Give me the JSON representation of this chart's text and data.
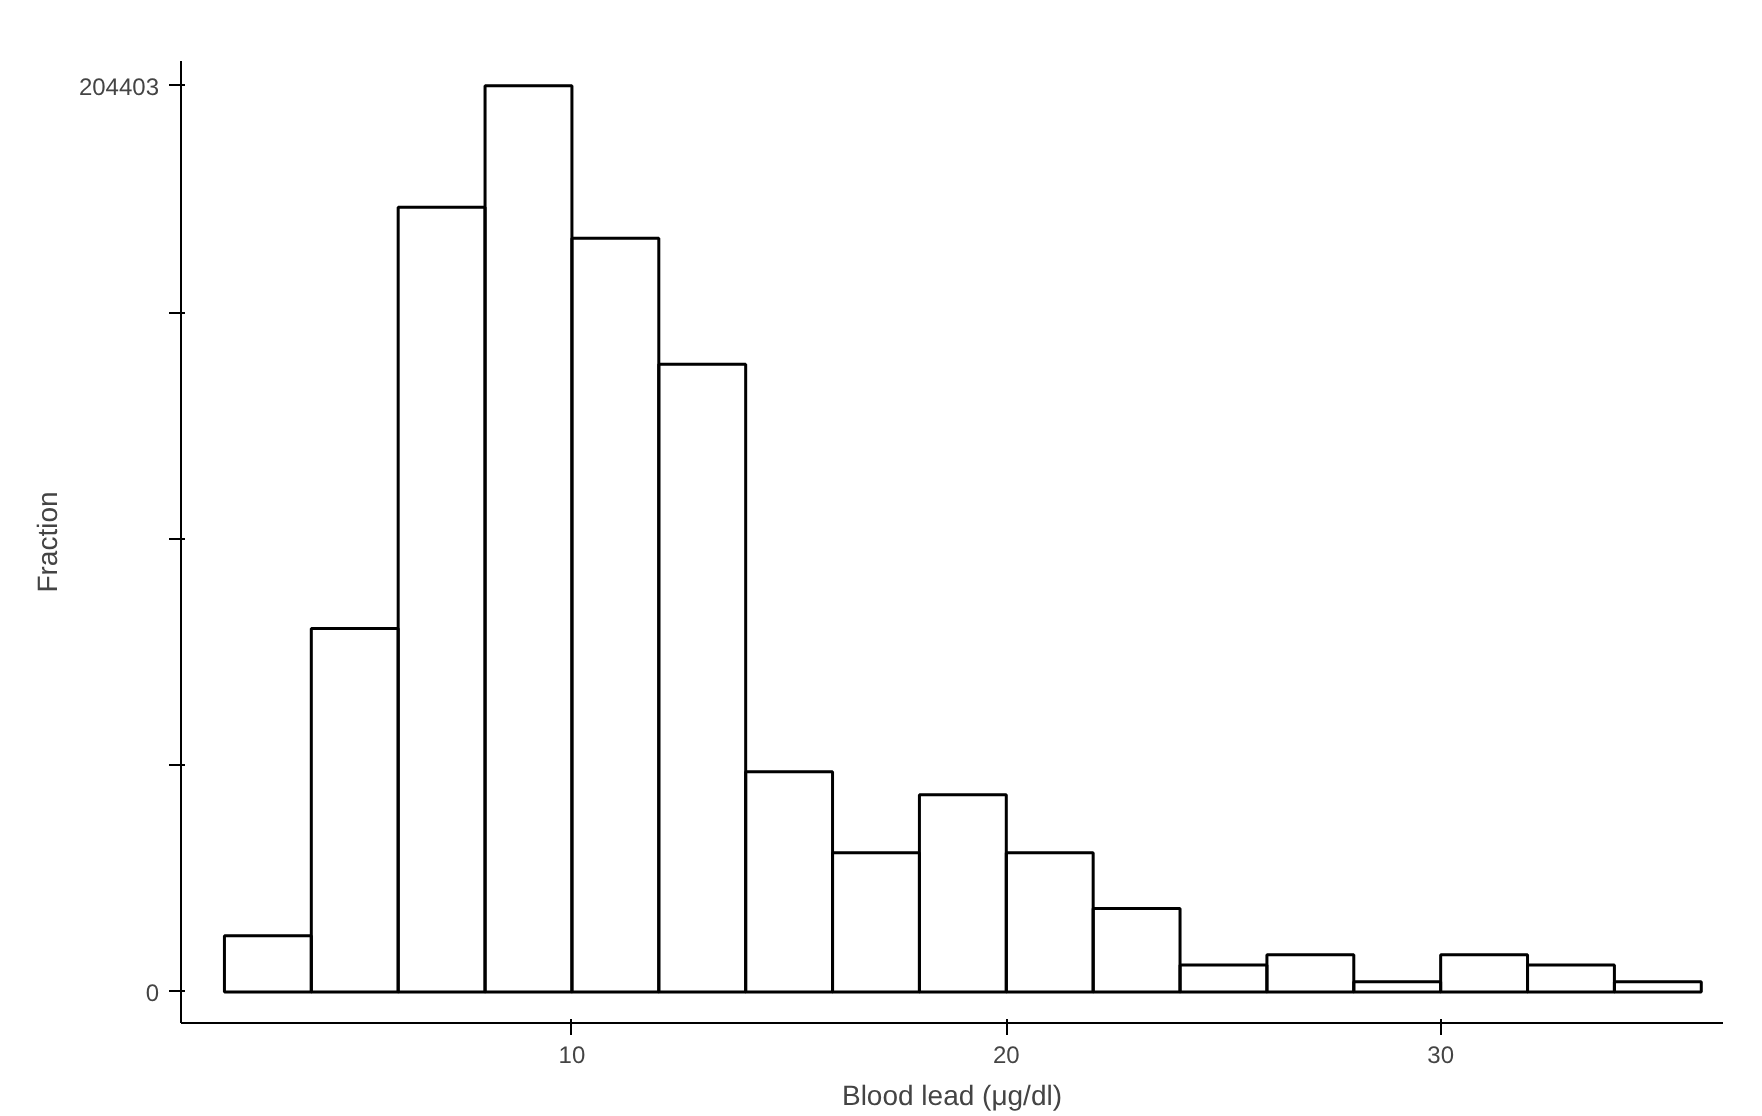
{
  "chart_data": {
    "type": "histogram",
    "xlabel": "Blood lead (μg/dl)",
    "ylabel": "Fraction",
    "bins": [
      2,
      4,
      6,
      8,
      10,
      12,
      14,
      16,
      18,
      20,
      22,
      24,
      26,
      28,
      30,
      32,
      34,
      36
    ],
    "values": [
      12700,
      82000,
      177000,
      204403,
      170000,
      141600,
      49700,
      31400,
      44500,
      31400,
      18800,
      6100,
      8400,
      2300,
      8400,
      6100,
      2300
    ],
    "color": "#000000",
    "xlim": [
      1,
      36.5
    ],
    "ylim": [
      -7000,
      210000
    ],
    "xticks": [
      10,
      20,
      30
    ],
    "yticks": [
      0,
      {
        "value": 51100,
        "label": null
      },
      {
        "value": 102200,
        "label": null
      },
      {
        "value": 153300,
        "label": null
      },
      204403
    ],
    "grid": false
  }
}
